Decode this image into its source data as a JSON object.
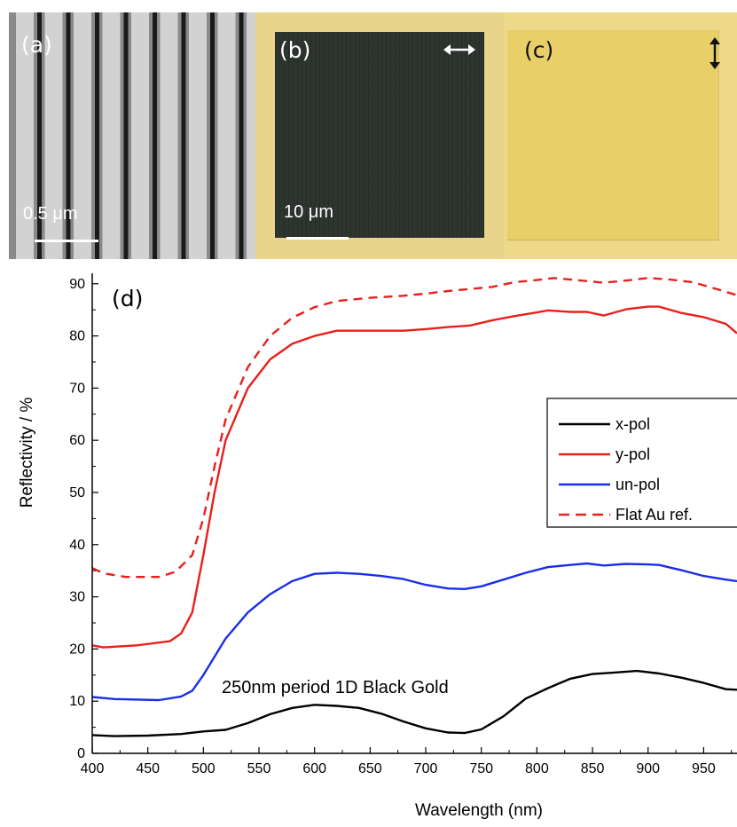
{
  "panels": {
    "a": {
      "label": "(a)",
      "scale_bar": "0.5 μm"
    },
    "b": {
      "label": "(b)",
      "scale_bar": "10 μm",
      "polarization_arrow": "horizontal-double-arrow-icon"
    },
    "c": {
      "label": "(c)",
      "polarization_arrow": "vertical-double-arrow-icon"
    },
    "d": {
      "label": "(d)"
    }
  },
  "colors": {
    "x_pol": "#000000",
    "y_pol": "#e8201c",
    "un_pol": "#1a2ee6",
    "flat_au": "#e8201c"
  },
  "chart_data": {
    "type": "line",
    "title": "",
    "annotation": "250nm period 1D Black Gold",
    "xlabel": "Wavelength (nm)",
    "ylabel": "Reflectivity / %",
    "xlim": [
      400,
      980
    ],
    "ylim": [
      0,
      92
    ],
    "xticks": [
      400,
      450,
      500,
      550,
      600,
      650,
      700,
      750,
      800,
      850,
      900,
      950
    ],
    "yticks": [
      0,
      10,
      20,
      30,
      40,
      50,
      60,
      70,
      80,
      90
    ],
    "legend_position": "right",
    "series": [
      {
        "name": "x-pol",
        "color": "#000000",
        "dash": false,
        "x": [
          400,
          420,
          450,
          480,
          500,
          520,
          540,
          560,
          580,
          600,
          620,
          640,
          660,
          680,
          700,
          720,
          735,
          750,
          770,
          790,
          810,
          830,
          850,
          870,
          890,
          910,
          930,
          950,
          970,
          980
        ],
        "y": [
          3.5,
          3.3,
          3.4,
          3.7,
          4.2,
          4.5,
          5.8,
          7.5,
          8.7,
          9.3,
          9.1,
          8.7,
          7.6,
          6.1,
          4.8,
          4.0,
          3.9,
          4.6,
          7.1,
          10.5,
          12.5,
          14.3,
          15.2,
          15.5,
          15.8,
          15.3,
          14.5,
          13.5,
          12.3,
          12.2
        ],
        "style": "solid"
      },
      {
        "name": "y-pol",
        "color": "#e8201c",
        "dash": false,
        "x": [
          400,
          410,
          440,
          470,
          480,
          490,
          500,
          510,
          520,
          540,
          560,
          580,
          600,
          620,
          640,
          660,
          680,
          700,
          720,
          740,
          760,
          780,
          800,
          810,
          830,
          845,
          860,
          880,
          900,
          910,
          930,
          950,
          970,
          980
        ],
        "y": [
          20.7,
          20.3,
          20.7,
          21.5,
          23,
          27,
          38,
          50,
          60,
          70,
          75.5,
          78.5,
          80,
          81,
          81,
          81,
          81,
          81.3,
          81.7,
          82,
          83,
          83.8,
          84.5,
          84.9,
          84.6,
          84.6,
          83.9,
          85.1,
          85.6,
          85.6,
          84.4,
          83.6,
          82.3,
          80.5
        ],
        "style": "solid"
      },
      {
        "name": "un-pol",
        "color": "#1a2ee6",
        "dash": false,
        "x": [
          400,
          420,
          460,
          480,
          490,
          500,
          520,
          540,
          560,
          580,
          600,
          620,
          640,
          660,
          680,
          700,
          720,
          735,
          750,
          770,
          790,
          810,
          830,
          845,
          860,
          880,
          900,
          910,
          930,
          950,
          970,
          980
        ],
        "y": [
          10.8,
          10.4,
          10.2,
          10.9,
          12,
          15,
          22,
          27,
          30.5,
          33,
          34.4,
          34.6,
          34.4,
          34,
          33.4,
          32.3,
          31.6,
          31.5,
          32,
          33.3,
          34.6,
          35.7,
          36.1,
          36.4,
          36,
          36.3,
          36.2,
          36.1,
          35.1,
          34,
          33.3,
          33
        ],
        "style": "solid"
      },
      {
        "name": "Flat Au ref.",
        "color": "#e8201c",
        "dash": true,
        "x": [
          400,
          410,
          430,
          460,
          475,
          490,
          500,
          510,
          520,
          540,
          560,
          580,
          600,
          620,
          650,
          680,
          700,
          720,
          760,
          780,
          800,
          815,
          840,
          860,
          880,
          900,
          920,
          940,
          960,
          980
        ],
        "y": [
          35.5,
          34.5,
          33.8,
          33.8,
          34.8,
          38,
          45,
          55,
          64,
          74,
          80,
          83.5,
          85.5,
          86.7,
          87.3,
          87.7,
          88.1,
          88.6,
          89.4,
          90.3,
          90.7,
          91.1,
          90.6,
          90.2,
          90.6,
          91.1,
          90.8,
          90.3,
          89.1,
          87.8
        ],
        "style": "dashed"
      }
    ]
  }
}
